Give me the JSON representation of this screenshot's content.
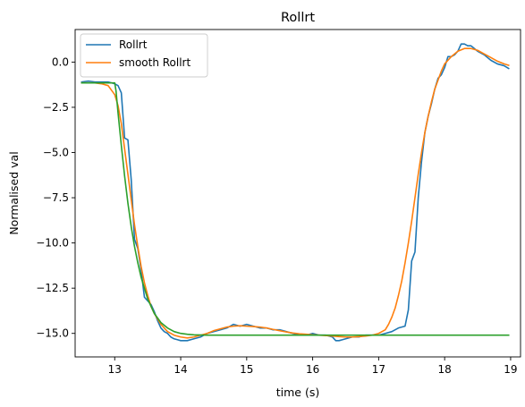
{
  "chart_data": {
    "type": "line",
    "title": "Rollrt",
    "xlabel": "time (s)",
    "ylabel": "Normalised val",
    "xlim": [
      12.4,
      19.15
    ],
    "ylim": [
      -16.3,
      1.8
    ],
    "x_ticks": [
      13,
      14,
      15,
      16,
      17,
      18,
      19
    ],
    "x_tick_labels": [
      "13",
      "14",
      "15",
      "16",
      "17",
      "18",
      "19"
    ],
    "y_ticks": [
      0.0,
      -2.5,
      -5.0,
      -7.5,
      -10.0,
      -12.5,
      -15.0
    ],
    "y_tick_labels": [
      "0.0",
      "−2.5",
      "−5.0",
      "−7.5",
      "−10.0",
      "−12.5",
      "−15.0"
    ],
    "grid": false,
    "legend_position": "top-left",
    "series": [
      {
        "name": "Rollrt",
        "color": "#1f77b4",
        "in_legend": true,
        "points": [
          [
            12.5,
            -1.1
          ],
          [
            12.6,
            -1.05
          ],
          [
            12.7,
            -1.1
          ],
          [
            12.8,
            -1.1
          ],
          [
            12.9,
            -1.1
          ],
          [
            13.0,
            -1.2
          ],
          [
            13.05,
            -1.3
          ],
          [
            13.1,
            -1.7
          ],
          [
            13.15,
            -4.2
          ],
          [
            13.2,
            -4.3
          ],
          [
            13.25,
            -6.5
          ],
          [
            13.3,
            -9.8
          ],
          [
            13.35,
            -10.3
          ],
          [
            13.4,
            -11.5
          ],
          [
            13.45,
            -13.0
          ],
          [
            13.5,
            -13.2
          ],
          [
            13.55,
            -13.4
          ],
          [
            13.6,
            -13.8
          ],
          [
            13.65,
            -14.3
          ],
          [
            13.7,
            -14.7
          ],
          [
            13.75,
            -14.9
          ],
          [
            13.8,
            -15.0
          ],
          [
            13.85,
            -15.2
          ],
          [
            13.9,
            -15.3
          ],
          [
            13.95,
            -15.35
          ],
          [
            14.0,
            -15.4
          ],
          [
            14.1,
            -15.4
          ],
          [
            14.2,
            -15.3
          ],
          [
            14.3,
            -15.2
          ],
          [
            14.4,
            -15.0
          ],
          [
            14.5,
            -14.9
          ],
          [
            14.6,
            -14.8
          ],
          [
            14.7,
            -14.7
          ],
          [
            14.8,
            -14.5
          ],
          [
            14.9,
            -14.6
          ],
          [
            15.0,
            -14.5
          ],
          [
            15.1,
            -14.6
          ],
          [
            15.2,
            -14.7
          ],
          [
            15.3,
            -14.7
          ],
          [
            15.4,
            -14.8
          ],
          [
            15.5,
            -14.8
          ],
          [
            15.6,
            -14.9
          ],
          [
            15.7,
            -15.0
          ],
          [
            15.8,
            -15.1
          ],
          [
            15.9,
            -15.1
          ],
          [
            16.0,
            -15.0
          ],
          [
            16.1,
            -15.1
          ],
          [
            16.2,
            -15.1
          ],
          [
            16.3,
            -15.2
          ],
          [
            16.35,
            -15.4
          ],
          [
            16.4,
            -15.4
          ],
          [
            16.5,
            -15.3
          ],
          [
            16.6,
            -15.2
          ],
          [
            16.7,
            -15.2
          ],
          [
            16.8,
            -15.1
          ],
          [
            16.9,
            -15.1
          ],
          [
            17.0,
            -15.1
          ],
          [
            17.1,
            -15.0
          ],
          [
            17.2,
            -14.9
          ],
          [
            17.3,
            -14.7
          ],
          [
            17.4,
            -14.6
          ],
          [
            17.45,
            -13.7
          ],
          [
            17.5,
            -11.0
          ],
          [
            17.55,
            -10.5
          ],
          [
            17.6,
            -7.5
          ],
          [
            17.65,
            -5.5
          ],
          [
            17.7,
            -3.9
          ],
          [
            17.75,
            -3.0
          ],
          [
            17.8,
            -2.3
          ],
          [
            17.85,
            -1.5
          ],
          [
            17.9,
            -0.9
          ],
          [
            17.95,
            -0.7
          ],
          [
            18.0,
            -0.3
          ],
          [
            18.05,
            0.3
          ],
          [
            18.1,
            0.3
          ],
          [
            18.15,
            0.4
          ],
          [
            18.2,
            0.6
          ],
          [
            18.25,
            1.0
          ],
          [
            18.3,
            1.0
          ],
          [
            18.35,
            0.9
          ],
          [
            18.4,
            0.9
          ],
          [
            18.5,
            0.6
          ],
          [
            18.6,
            0.4
          ],
          [
            18.7,
            0.1
          ],
          [
            18.8,
            -0.1
          ],
          [
            18.9,
            -0.2
          ],
          [
            18.97,
            -0.35
          ]
        ]
      },
      {
        "name": "smooth Rollrt",
        "color": "#ff7f0e",
        "in_legend": true,
        "points": [
          [
            12.5,
            -1.15
          ],
          [
            12.6,
            -1.15
          ],
          [
            12.7,
            -1.15
          ],
          [
            12.8,
            -1.2
          ],
          [
            12.9,
            -1.3
          ],
          [
            13.0,
            -1.8
          ],
          [
            13.05,
            -2.4
          ],
          [
            13.1,
            -3.4
          ],
          [
            13.15,
            -4.8
          ],
          [
            13.2,
            -6.2
          ],
          [
            13.25,
            -7.6
          ],
          [
            13.3,
            -9.0
          ],
          [
            13.35,
            -10.2
          ],
          [
            13.4,
            -11.3
          ],
          [
            13.45,
            -12.2
          ],
          [
            13.5,
            -12.9
          ],
          [
            13.55,
            -13.5
          ],
          [
            13.6,
            -13.9
          ],
          [
            13.7,
            -14.5
          ],
          [
            13.8,
            -14.9
          ],
          [
            13.9,
            -15.1
          ],
          [
            14.0,
            -15.2
          ],
          [
            14.1,
            -15.25
          ],
          [
            14.2,
            -15.2
          ],
          [
            14.3,
            -15.1
          ],
          [
            14.4,
            -15.0
          ],
          [
            14.5,
            -14.85
          ],
          [
            14.6,
            -14.75
          ],
          [
            14.7,
            -14.65
          ],
          [
            14.8,
            -14.6
          ],
          [
            14.9,
            -14.58
          ],
          [
            15.0,
            -14.6
          ],
          [
            15.1,
            -14.62
          ],
          [
            15.2,
            -14.65
          ],
          [
            15.3,
            -14.7
          ],
          [
            15.4,
            -14.78
          ],
          [
            15.5,
            -14.85
          ],
          [
            15.6,
            -14.92
          ],
          [
            15.7,
            -14.98
          ],
          [
            15.8,
            -15.02
          ],
          [
            15.9,
            -15.05
          ],
          [
            16.0,
            -15.08
          ],
          [
            16.1,
            -15.1
          ],
          [
            16.2,
            -15.12
          ],
          [
            16.3,
            -15.15
          ],
          [
            16.4,
            -15.18
          ],
          [
            16.5,
            -15.2
          ],
          [
            16.6,
            -15.2
          ],
          [
            16.7,
            -15.18
          ],
          [
            16.8,
            -15.15
          ],
          [
            16.9,
            -15.1
          ],
          [
            17.0,
            -15.0
          ],
          [
            17.1,
            -14.8
          ],
          [
            17.15,
            -14.5
          ],
          [
            17.2,
            -14.1
          ],
          [
            17.25,
            -13.6
          ],
          [
            17.3,
            -12.9
          ],
          [
            17.35,
            -12.1
          ],
          [
            17.4,
            -11.1
          ],
          [
            17.45,
            -10.0
          ],
          [
            17.5,
            -8.8
          ],
          [
            17.55,
            -7.5
          ],
          [
            17.6,
            -6.2
          ],
          [
            17.65,
            -5.0
          ],
          [
            17.7,
            -3.9
          ],
          [
            17.75,
            -3.0
          ],
          [
            17.8,
            -2.2
          ],
          [
            17.85,
            -1.5
          ],
          [
            17.9,
            -1.0
          ],
          [
            17.95,
            -0.5
          ],
          [
            18.0,
            -0.1
          ],
          [
            18.1,
            0.3
          ],
          [
            18.2,
            0.6
          ],
          [
            18.3,
            0.75
          ],
          [
            18.4,
            0.75
          ],
          [
            18.5,
            0.65
          ],
          [
            18.6,
            0.45
          ],
          [
            18.7,
            0.25
          ],
          [
            18.8,
            0.05
          ],
          [
            18.9,
            -0.1
          ],
          [
            18.97,
            -0.18
          ]
        ]
      },
      {
        "name": "",
        "color": "#2ca02c",
        "in_legend": false,
        "points": [
          [
            12.5,
            -1.15
          ],
          [
            12.6,
            -1.15
          ],
          [
            12.7,
            -1.15
          ],
          [
            12.8,
            -1.15
          ],
          [
            12.9,
            -1.15
          ],
          [
            13.0,
            -1.15
          ],
          [
            13.02,
            -1.6
          ],
          [
            13.05,
            -2.8
          ],
          [
            13.1,
            -4.6
          ],
          [
            13.15,
            -6.3
          ],
          [
            13.2,
            -7.8
          ],
          [
            13.25,
            -9.1
          ],
          [
            13.3,
            -10.2
          ],
          [
            13.35,
            -11.1
          ],
          [
            13.4,
            -11.9
          ],
          [
            13.45,
            -12.5
          ],
          [
            13.5,
            -13.1
          ],
          [
            13.55,
            -13.5
          ],
          [
            13.6,
            -13.9
          ],
          [
            13.65,
            -14.15
          ],
          [
            13.7,
            -14.4
          ],
          [
            13.8,
            -14.7
          ],
          [
            13.9,
            -14.9
          ],
          [
            14.0,
            -15.0
          ],
          [
            14.1,
            -15.05
          ],
          [
            14.2,
            -15.08
          ],
          [
            14.4,
            -15.1
          ],
          [
            15.0,
            -15.1
          ],
          [
            16.0,
            -15.1
          ],
          [
            17.0,
            -15.1
          ],
          [
            18.0,
            -15.1
          ],
          [
            18.97,
            -15.1
          ]
        ]
      }
    ]
  }
}
